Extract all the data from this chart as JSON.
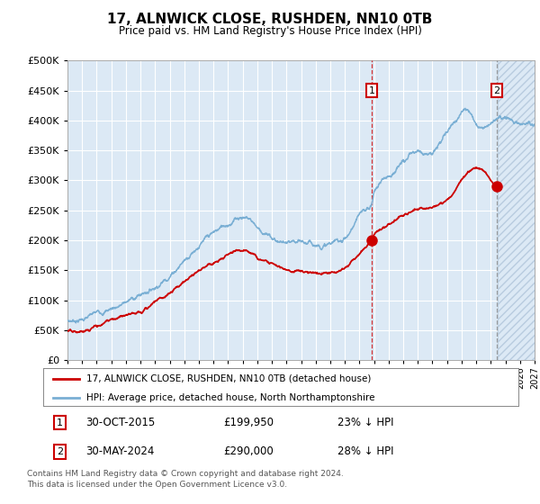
{
  "title": "17, ALNWICK CLOSE, RUSHDEN, NN10 0TB",
  "subtitle": "Price paid vs. HM Land Registry's House Price Index (HPI)",
  "ylim": [
    0,
    500000
  ],
  "yticks": [
    0,
    50000,
    100000,
    150000,
    200000,
    250000,
    300000,
    350000,
    400000,
    450000,
    500000
  ],
  "ytick_labels": [
    "£0",
    "£50K",
    "£100K",
    "£150K",
    "£200K",
    "£250K",
    "£300K",
    "£350K",
    "£400K",
    "£450K",
    "£500K"
  ],
  "bg_color": "#dce9f5",
  "hatch_color": "#b8ccdf",
  "grid_color": "#ffffff",
  "legend_entry1": "17, ALNWICK CLOSE, RUSHDEN, NN10 0TB (detached house)",
  "legend_entry2": "HPI: Average price, detached house, North Northamptonshire",
  "annotation1_date": "30-OCT-2015",
  "annotation1_price": "£199,950",
  "annotation1_hpi": "23% ↓ HPI",
  "annotation2_date": "30-MAY-2024",
  "annotation2_price": "£290,000",
  "annotation2_hpi": "28% ↓ HPI",
  "footer": "Contains HM Land Registry data © Crown copyright and database right 2024.\nThis data is licensed under the Open Government Licence v3.0.",
  "sale1_x": 2015.83,
  "sale1_y": 199950,
  "sale2_x": 2024.42,
  "sale2_y": 290000,
  "line1_color": "#cc0000",
  "line2_color": "#7aafd4",
  "xmin": 1995,
  "xmax": 2027,
  "future_start": 2024.5
}
